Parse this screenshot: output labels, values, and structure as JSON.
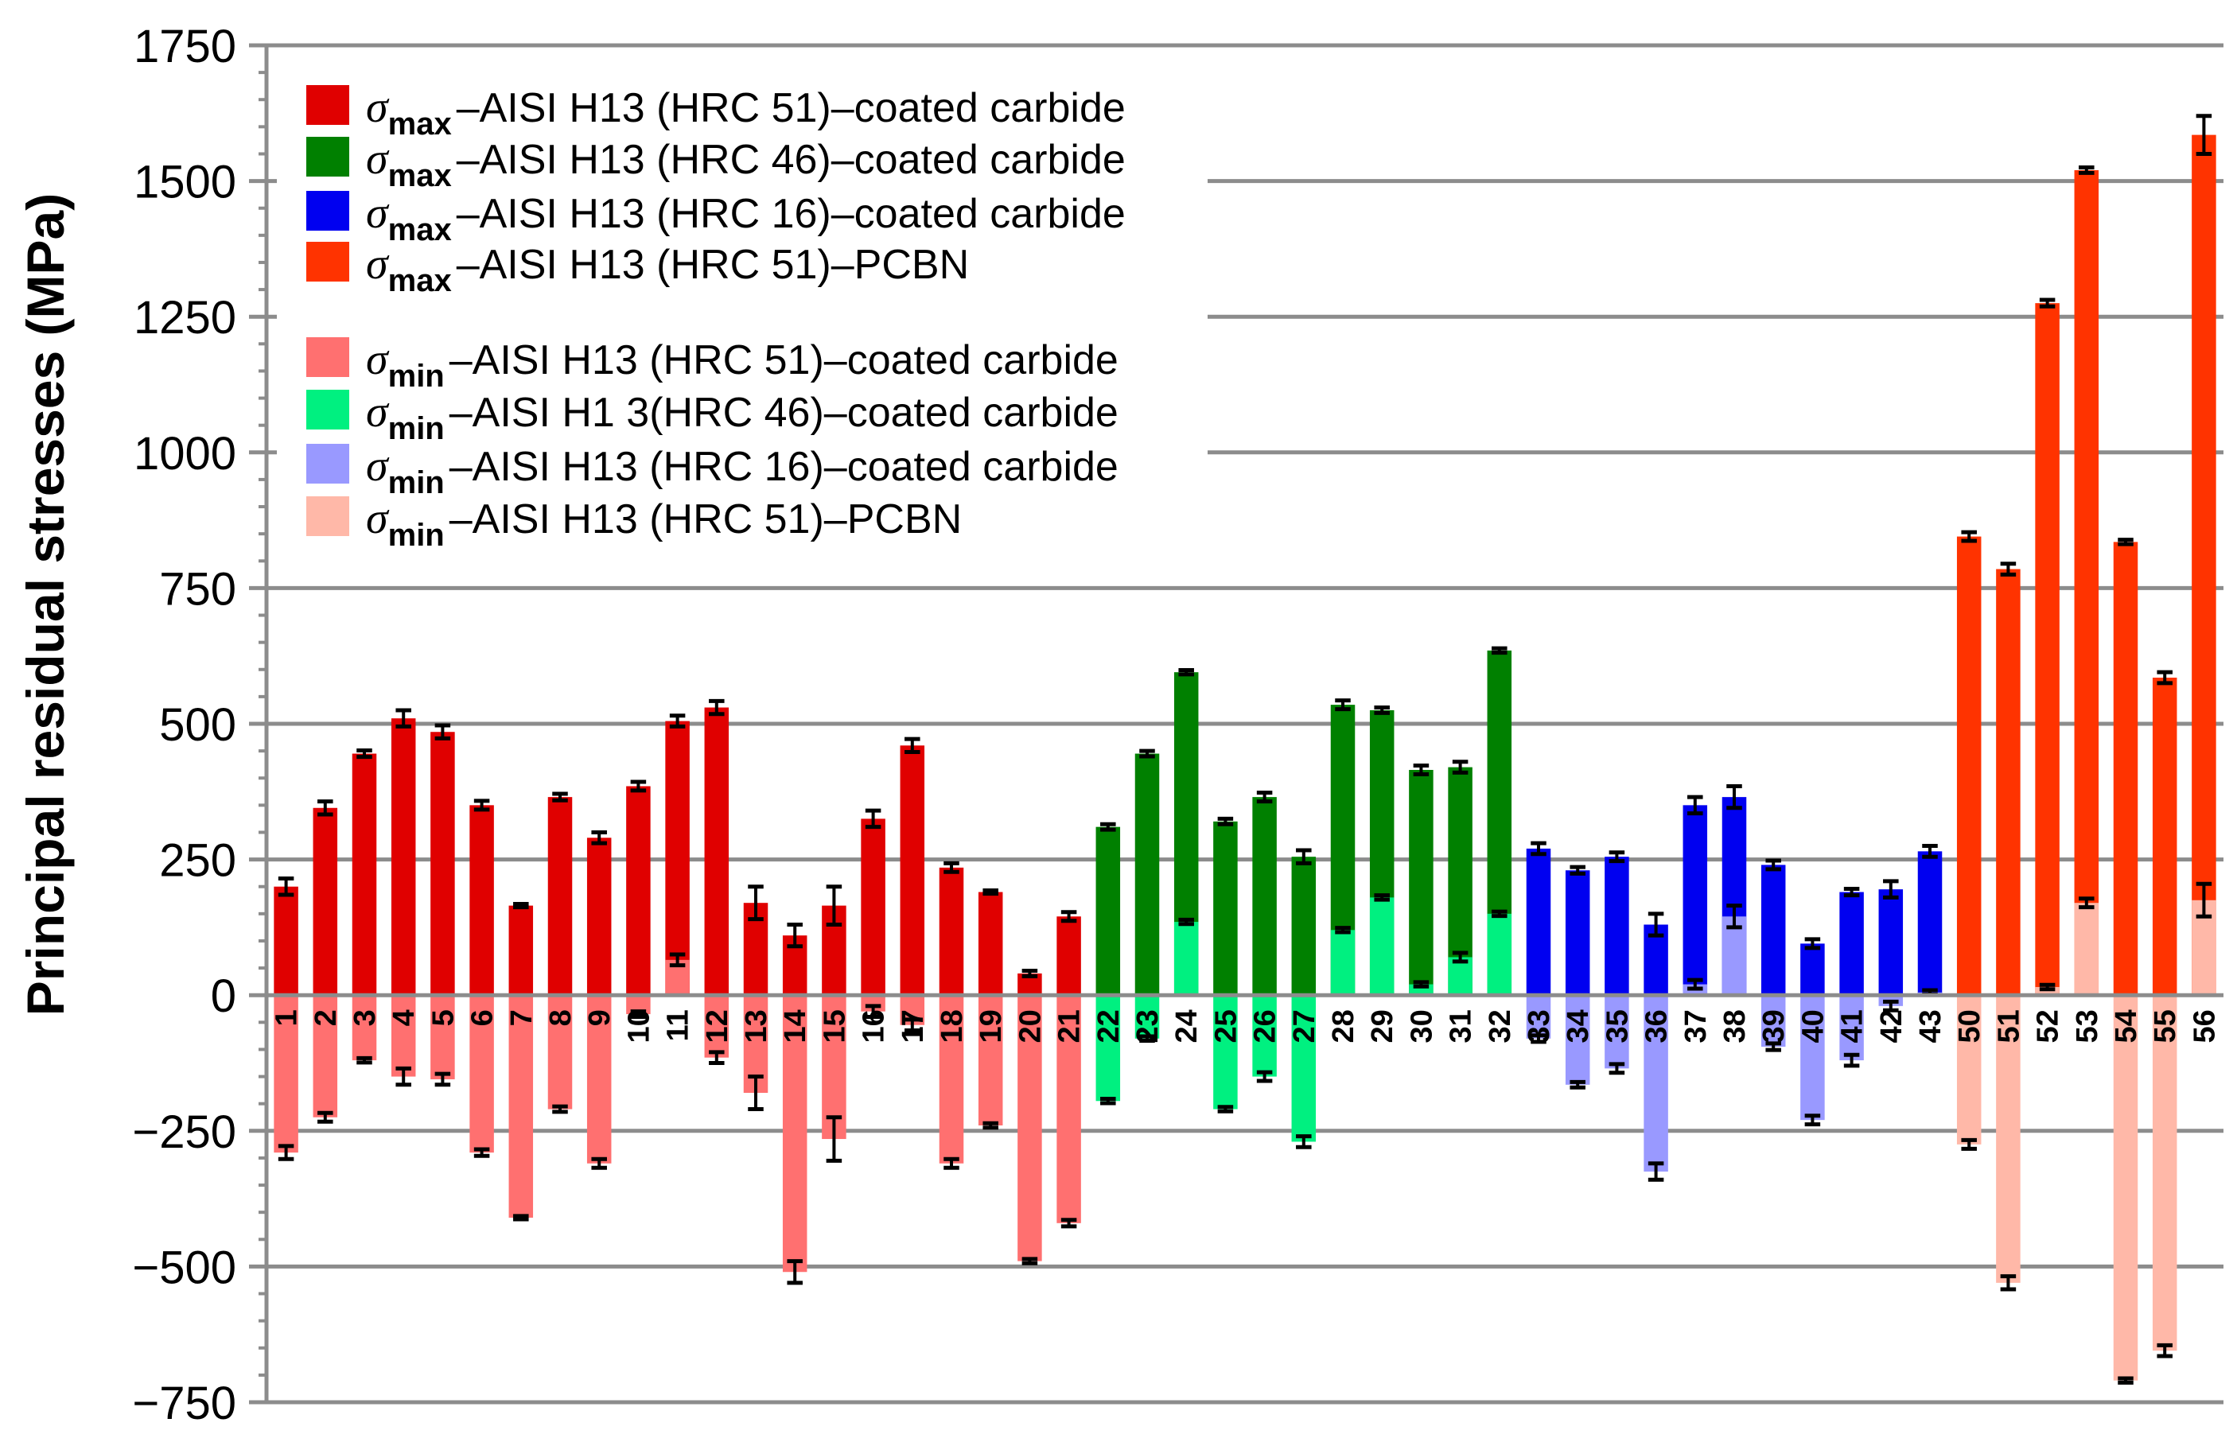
{
  "chart_data": {
    "type": "bar",
    "title": "",
    "xlabel": "",
    "ylabel": "Principal residual stresses (MPa)",
    "ylim": [
      -750,
      1750
    ],
    "yticks": [
      -750,
      -500,
      -250,
      0,
      250,
      500,
      750,
      1000,
      1250,
      1500,
      1750
    ],
    "ytick_labels": [
      "−750",
      "−500",
      "−250",
      "0",
      "250",
      "500",
      "750",
      "1000",
      "1250",
      "1500",
      "1750"
    ],
    "grid": true,
    "legend_position": "top-left",
    "categories": [
      "1",
      "2",
      "3",
      "4",
      "5",
      "6",
      "7",
      "8",
      "9",
      "10",
      "11",
      "12",
      "13",
      "14",
      "15",
      "16",
      "17",
      "18",
      "19",
      "20",
      "21",
      "22",
      "23",
      "24",
      "25",
      "26",
      "27",
      "28",
      "29",
      "30",
      "31",
      "32",
      "33",
      "34",
      "35",
      "36",
      "37",
      "38",
      "39",
      "40",
      "41",
      "42",
      "43",
      "50",
      "51",
      "52",
      "53",
      "54",
      "55",
      "56"
    ],
    "groups": [
      {
        "material": "AISI H13 (HRC 51)",
        "tool": "coated carbide",
        "from": 0,
        "to": 20
      },
      {
        "material": "AISI H13 (HRC 46)",
        "tool": "coated carbide",
        "from": 21,
        "to": 31
      },
      {
        "material": "AISI H13 (HRC 16)",
        "tool": "coated carbide",
        "from": 32,
        "to": 42
      },
      {
        "material": "AISI H13 (HRC 51)",
        "tool": "PCBN",
        "from": 43,
        "to": 49
      }
    ],
    "series": [
      {
        "kind": "max",
        "values": [
          200,
          345,
          445,
          510,
          485,
          350,
          165,
          365,
          290,
          385,
          505,
          530,
          170,
          110,
          165,
          325,
          460,
          235,
          190,
          40,
          145,
          310,
          445,
          595,
          320,
          365,
          255,
          535,
          525,
          415,
          420,
          635,
          270,
          230,
          255,
          130,
          350,
          365,
          240,
          95,
          190,
          195,
          265,
          845,
          785,
          1275,
          1520,
          835,
          585,
          1585
        ],
        "errors": [
          15,
          12,
          6,
          15,
          12,
          8,
          3,
          6,
          10,
          8,
          10,
          12,
          30,
          20,
          35,
          15,
          12,
          8,
          3,
          5,
          8,
          5,
          5,
          4,
          5,
          8,
          12,
          8,
          5,
          8,
          10,
          4,
          10,
          6,
          8,
          20,
          15,
          20,
          8,
          8,
          6,
          15,
          10,
          8,
          10,
          6,
          5,
          4,
          10,
          35
        ]
      },
      {
        "kind": "min",
        "values": [
          -290,
          -225,
          -120,
          -150,
          -155,
          -290,
          -410,
          -210,
          -310,
          -35,
          65,
          -115,
          -180,
          -510,
          -265,
          -30,
          -55,
          -310,
          -240,
          -490,
          -420,
          -195,
          -80,
          135,
          -210,
          -150,
          -270,
          120,
          180,
          20,
          70,
          150,
          -80,
          -165,
          -135,
          -325,
          20,
          145,
          -95,
          -230,
          -120,
          -20,
          5,
          -275,
          -530,
          15,
          170,
          -710,
          -655,
          175
        ],
        "errors": [
          12,
          8,
          4,
          15,
          10,
          6,
          3,
          5,
          8,
          5,
          10,
          10,
          30,
          20,
          40,
          10,
          10,
          8,
          4,
          4,
          6,
          4,
          4,
          4,
          4,
          8,
          10,
          4,
          4,
          4,
          8,
          4,
          6,
          5,
          8,
          15,
          8,
          20,
          6,
          8,
          10,
          8,
          4,
          8,
          12,
          4,
          8,
          4,
          10,
          30
        ]
      }
    ],
    "legend": [
      {
        "symbol": "σ",
        "sub": "max",
        "text": "–AISI H13 (HRC 51)–coated carbide",
        "color": "#e00000"
      },
      {
        "symbol": "σ",
        "sub": "max",
        "text": "–AISI H13 (HRC 46)–coated carbide",
        "color": "#008000"
      },
      {
        "symbol": "σ",
        "sub": "max",
        "text": "–AISI H13 (HRC 16)–coated carbide",
        "color": "#0000f0"
      },
      {
        "symbol": "σ",
        "sub": "max",
        "text": "–AISI H13 (HRC 51)–PCBN",
        "color": "#ff3300"
      },
      {
        "symbol": "σ",
        "sub": "min",
        "text": "–AISI H13 (HRC 51)–coated carbide",
        "color": "#ff7070"
      },
      {
        "symbol": "σ",
        "sub": "min",
        "text": "–AISI H1 3(HRC 46)–coated carbide",
        "color": "#00f080"
      },
      {
        "symbol": "σ",
        "sub": "min",
        "text": "–AISI H13 (HRC 16)–coated carbide",
        "color": "#9999ff"
      },
      {
        "symbol": "σ",
        "sub": "min",
        "text": "–AISI H13 (HRC 51)–PCBN",
        "color": "#ffb8a8"
      }
    ],
    "group_colors": {
      "max": [
        "#e00000",
        "#008000",
        "#0000f0",
        "#ff3300"
      ],
      "min": [
        "#ff7070",
        "#00f080",
        "#9999ff",
        "#ffb8a8"
      ]
    }
  }
}
